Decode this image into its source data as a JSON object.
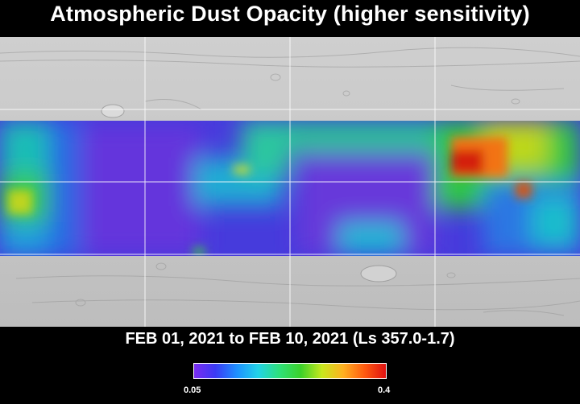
{
  "title": "Atmospheric Dust Opacity (higher sensitivity)",
  "subtitle": "FEB 01, 2021 to FEB 10, 2021 (Ls 357.0-1.7)",
  "colorbar": {
    "min_label": "0.05",
    "max_label": "0.4",
    "colors": [
      "#7a2cf0",
      "#3a3af5",
      "#1e90ff",
      "#22d3e8",
      "#2ee07a",
      "#3bd12a",
      "#c8e81e",
      "#ffb020",
      "#ff5a10",
      "#e01212"
    ]
  },
  "map": {
    "basemap": "shaded-relief-gray",
    "colors": {
      "violet": "#7b3fe0",
      "blue": "#3b4ff0",
      "cyan": "#20c8e8",
      "green": "#33d67a",
      "yellow": "#c8e81e",
      "orange": "#ff8a1e",
      "red": "#e02010"
    }
  }
}
